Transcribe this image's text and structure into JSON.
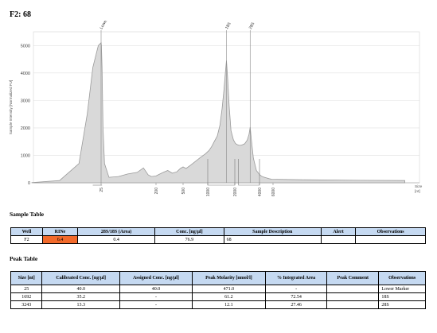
{
  "page": {
    "title": "F2: 68"
  },
  "chart_data": {
    "type": "line",
    "ylabel": "Sample Intensity [Normalized FU]",
    "xlabel": "Size [nt]",
    "ylim": [
      0,
      5500
    ],
    "yticks": [
      0,
      1000,
      2000,
      3000,
      4000,
      5000
    ],
    "xticks": [
      25,
      200,
      500,
      1000,
      2000,
      4000,
      6000
    ],
    "peak_labels": [
      {
        "label": "Lower",
        "size": 25
      },
      {
        "label": "18S",
        "size": 1692
      },
      {
        "label": "28S",
        "size": 3243
      }
    ],
    "series": [
      {
        "x": [
          0,
          10,
          17,
          20,
          22,
          24,
          25,
          26,
          28,
          31,
          36,
          50,
          80,
          110,
          140,
          160,
          175,
          185,
          200,
          230,
          280,
          330,
          380,
          430,
          470,
          500,
          560,
          650,
          750,
          850,
          950,
          1050,
          1150,
          1250,
          1350,
          1450,
          1530,
          1600,
          1650,
          1692,
          1730,
          1790,
          1860,
          1950,
          2050,
          2200,
          2400,
          2600,
          2800,
          3000,
          3150,
          3243,
          3330,
          3500,
          3750,
          4000,
          4300,
          4600,
          5000,
          5400,
          5800,
          6200,
          6600,
          6900
        ],
        "y": [
          10,
          80,
          700,
          2500,
          4200,
          5000,
          5100,
          5000,
          4200,
          2000,
          700,
          200,
          230,
          320,
          380,
          540,
          290,
          230,
          250,
          300,
          380,
          450,
          350,
          400,
          520,
          580,
          520,
          640,
          780,
          920,
          1050,
          1180,
          1330,
          1520,
          1700,
          2100,
          2700,
          3400,
          4000,
          4450,
          3900,
          2800,
          1900,
          1560,
          1430,
          1390,
          1360,
          1380,
          1420,
          1550,
          1760,
          2030,
          1620,
          900,
          450,
          300,
          240,
          210,
          180,
          150,
          130,
          110,
          90,
          80
        ]
      }
    ]
  },
  "sample_table": {
    "title": "Sample Table",
    "headers": [
      "Well",
      "RINe",
      "28S/18S (Area)",
      "Conc. [ng/µl]",
      "Sample Description",
      "Alert",
      "Observations"
    ],
    "rows": [
      [
        "F2",
        "6.4",
        "0.4",
        "76.9",
        "68",
        "",
        ""
      ]
    ]
  },
  "peak_table": {
    "title": "Peak Table",
    "headers": [
      "Size [nt]",
      "Calibrated Conc. [ng/µl]",
      "Assigned Conc. [ng/µl]",
      "Peak Molarity [nmol/l]",
      "% Integrated Area",
      "Peak Comment",
      "Observations"
    ],
    "rows": [
      [
        "25",
        "40.0",
        "40.0",
        "471.0",
        "-",
        "",
        "Lower Marker"
      ],
      [
        "1692",
        "35.2",
        "-",
        "61.2",
        "72.54",
        "",
        "18S"
      ],
      [
        "3243",
        "13.3",
        "-",
        "12.1",
        "27.46",
        "",
        "28S"
      ]
    ]
  }
}
